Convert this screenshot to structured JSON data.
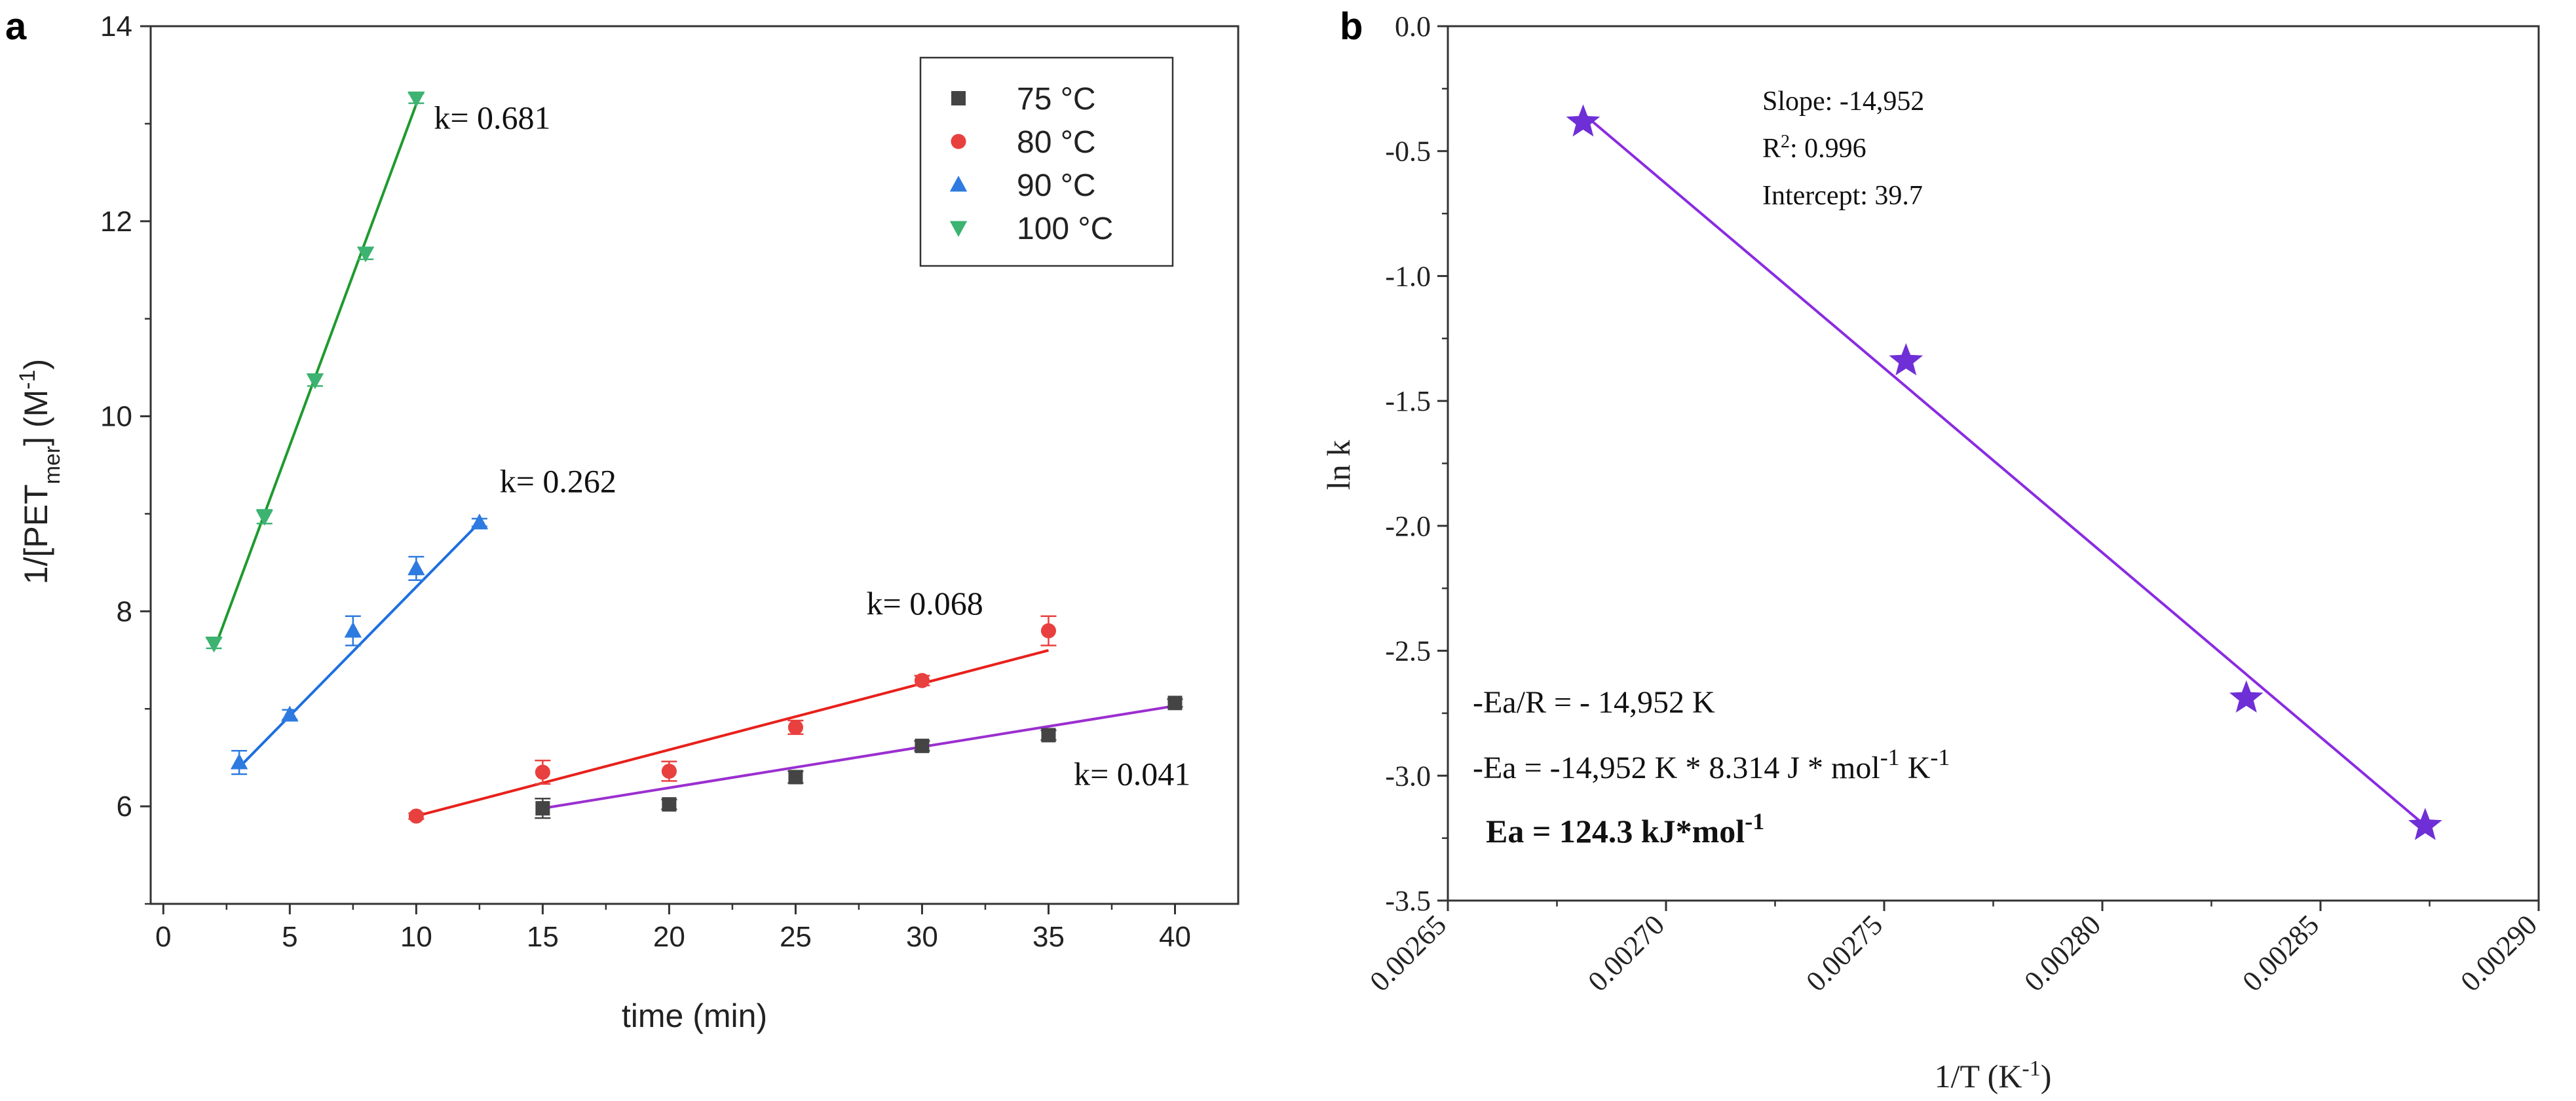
{
  "chart_data": [
    {
      "type": "scatter",
      "panel": "a",
      "xlabel": "time (min)",
      "ylabel": "1/[PET",
      "ylabel_sub": "mer",
      "ylabel_tail": "] (M",
      "ylabel_sup": "-1",
      "ylabel_end": ")",
      "xlim": [
        -0.5,
        42.5
      ],
      "ylim": [
        5.0,
        14.0
      ],
      "xticks": [
        0,
        5,
        10,
        15,
        20,
        25,
        30,
        35,
        40
      ],
      "yticks": [
        6,
        8,
        10,
        12,
        14
      ],
      "legend_position": "top-right",
      "series": [
        {
          "name": "75 °C",
          "marker": "square",
          "color": "#444444",
          "line_color": "#9b2fd0",
          "x": [
            15,
            20,
            25,
            30,
            35,
            40
          ],
          "y": [
            5.98,
            6.02,
            6.3,
            6.62,
            6.73,
            7.06
          ],
          "err": [
            0.1,
            0.05,
            0.06,
            0.05,
            0.05,
            0.04
          ],
          "fit": {
            "x": [
              15,
              40
            ],
            "y": [
              5.98,
              7.03
            ]
          },
          "k_label": "k= 0.041"
        },
        {
          "name": "80 °C",
          "marker": "circle",
          "color": "#e8403f",
          "line_color": "#e8201b",
          "x": [
            10,
            15,
            20,
            25,
            30,
            35
          ],
          "y": [
            5.9,
            6.35,
            6.36,
            6.81,
            7.29,
            7.8
          ],
          "err": [
            0.03,
            0.12,
            0.1,
            0.07,
            0.05,
            0.15
          ],
          "fit": {
            "x": [
              10,
              35
            ],
            "y": [
              5.9,
              7.6
            ]
          },
          "k_label": "k= 0.068"
        },
        {
          "name": "90 °C",
          "marker": "triangle-up",
          "color": "#2d7be0",
          "line_color": "#1d6fe0",
          "x": [
            3,
            5,
            7.5,
            10,
            12.5
          ],
          "y": [
            6.45,
            6.94,
            7.8,
            8.44,
            8.91
          ],
          "err": [
            0.12,
            0.05,
            0.15,
            0.12,
            0.04
          ],
          "fit": {
            "x": [
              3,
              12.5
            ],
            "y": [
              6.4,
              8.91
            ]
          },
          "k_label": "k= 0.262"
        },
        {
          "name": "100 °C",
          "marker": "triangle-down",
          "color": "#3cb371",
          "line_color": "#1f9a2f",
          "x": [
            2,
            4,
            6,
            8,
            10
          ],
          "y": [
            7.67,
            8.97,
            10.37,
            11.67,
            13.26
          ],
          "err": [
            0.05,
            0.07,
            0.06,
            0.06,
            0.05
          ],
          "fit": {
            "x": [
              2,
              10
            ],
            "y": [
              7.6,
              13.2
            ]
          },
          "k_label": "k= 0.681"
        }
      ]
    },
    {
      "type": "scatter",
      "panel": "b",
      "xlabel": "1/T (K",
      "xlabel_sup": "-1",
      "xlabel_end": ")",
      "ylabel": "ln k",
      "xlim": [
        0.00265,
        0.0029
      ],
      "ylim": [
        -3.5,
        0.0
      ],
      "xticks": [
        "0.00265",
        "0.00270",
        "0.00275",
        "0.00280",
        "0.00285",
        "0.00290"
      ],
      "yticks": [
        "0.0",
        "-0.5",
        "-1.0",
        "-1.5",
        "-2.0",
        "-2.5",
        "-3.0",
        "-3.5"
      ],
      "series": [
        {
          "name": "ln k",
          "marker": "star",
          "color": "#6f2fd6",
          "line_color": "#8a2be2",
          "x": [
            0.002681,
            0.002755,
            0.002833,
            0.002874
          ],
          "y": [
            -0.384,
            -1.34,
            -2.69,
            -3.2
          ],
          "fit": {
            "x": [
              0.002681,
              0.002874
            ],
            "y": [
              -0.35,
              -3.2
            ]
          }
        }
      ],
      "stats": {
        "slope": "Slope: -14,952",
        "r2_prefix": "R",
        "r2_sup": "2",
        "r2_value": ": 0.996",
        "intercept": "Intercept: 39.7"
      },
      "equations": {
        "line1": "-Ea/R = - 14,952 K",
        "line2_a": "-Ea = -14,952 K * 8.314 J * mol",
        "line2_sup1": "-1",
        "line2_b": " K",
        "line2_sup2": "-1",
        "line3_a": "Ea = 124.3 kJ*mol",
        "line3_sup": "-1"
      }
    }
  ]
}
